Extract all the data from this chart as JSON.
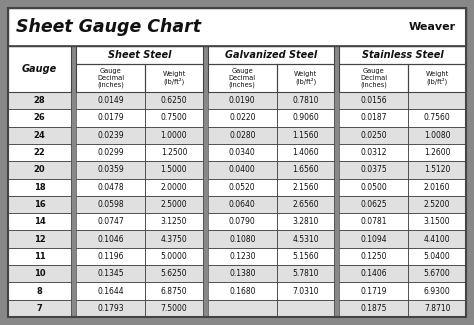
{
  "title": "Sheet Gauge Chart",
  "outer_bg": "#888888",
  "inner_bg": "#ffffff",
  "col1_header": "Gauge",
  "section_headers": [
    "Sheet Steel",
    "Galvanized Steel",
    "Stainless Steel"
  ],
  "sub_headers": [
    "Gauge\nDecimal\n(inches)",
    "Weight\n(lb/ft²)",
    "Gauge\nDecimal\n(inches)",
    "Weight\n(lb/ft²)",
    "Gauge\nDecimal\n(inches)",
    "Weight\n(lb/ft²)"
  ],
  "gauges": [
    "28",
    "26",
    "24",
    "22",
    "20",
    "18",
    "16",
    "14",
    "12",
    "11",
    "10",
    "8",
    "7"
  ],
  "sheet_steel": [
    [
      "0.0149",
      "0.6250"
    ],
    [
      "0.0179",
      "0.7500"
    ],
    [
      "0.0239",
      "1.0000"
    ],
    [
      "0.0299",
      "1.2500"
    ],
    [
      "0.0359",
      "1.5000"
    ],
    [
      "0.0478",
      "2.0000"
    ],
    [
      "0.0598",
      "2.5000"
    ],
    [
      "0.0747",
      "3.1250"
    ],
    [
      "0.1046",
      "4.3750"
    ],
    [
      "0.1196",
      "5.0000"
    ],
    [
      "0.1345",
      "5.6250"
    ],
    [
      "0.1644",
      "6.8750"
    ],
    [
      "0.1793",
      "7.5000"
    ]
  ],
  "galvanized_steel": [
    [
      "0.0190",
      "0.7810"
    ],
    [
      "0.0220",
      "0.9060"
    ],
    [
      "0.0280",
      "1.1560"
    ],
    [
      "0.0340",
      "1.4060"
    ],
    [
      "0.0400",
      "1.6560"
    ],
    [
      "0.0520",
      "2.1560"
    ],
    [
      "0.0640",
      "2.6560"
    ],
    [
      "0.0790",
      "3.2810"
    ],
    [
      "0.1080",
      "4.5310"
    ],
    [
      "0.1230",
      "5.1560"
    ],
    [
      "0.1380",
      "5.7810"
    ],
    [
      "0.1680",
      "7.0310"
    ],
    [
      "",
      ""
    ]
  ],
  "stainless_steel": [
    [
      "0.0156",
      ""
    ],
    [
      "0.0187",
      "0.7560"
    ],
    [
      "0.0250",
      "1.0080"
    ],
    [
      "0.0312",
      "1.2600"
    ],
    [
      "0.0375",
      "1.5120"
    ],
    [
      "0.0500",
      "2.0160"
    ],
    [
      "0.0625",
      "2.5200"
    ],
    [
      "0.0781",
      "3.1500"
    ],
    [
      "0.1094",
      "4.4100"
    ],
    [
      "0.1250",
      "5.0400"
    ],
    [
      "0.1406",
      "5.6700"
    ],
    [
      "0.1719",
      "6.9300"
    ],
    [
      "0.1875",
      "7.8710"
    ]
  ],
  "row_colors": [
    "#e0e0e0",
    "#ffffff"
  ],
  "border_color": "#444444",
  "sep_color": "#888888",
  "text_color": "#111111",
  "header_fontsize": 7.0,
  "subheader_fontsize": 4.8,
  "data_fontsize": 5.5,
  "gauge_fontsize": 6.0,
  "title_fontsize": 12.5
}
